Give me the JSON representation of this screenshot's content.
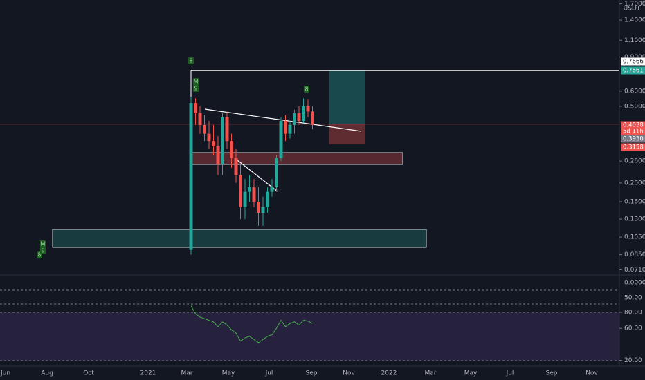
{
  "chart_data": {
    "type": "candlestick",
    "unit": "USDT",
    "log_scale": true,
    "ylim": [
      0.0656,
      1.78
    ],
    "yticks": [
      {
        "value": 1.7,
        "label": "1.7000"
      },
      {
        "value": 1.4,
        "label": "1.4000"
      },
      {
        "value": 1.1,
        "label": "1.1000"
      },
      {
        "value": 0.9,
        "label": "0.9000"
      },
      {
        "value": 0.6,
        "label": "0.6000"
      },
      {
        "value": 0.5,
        "label": "0.5000"
      },
      {
        "value": 0.26,
        "label": "0.2600"
      },
      {
        "value": 0.2,
        "label": "0.2000"
      },
      {
        "value": 0.16,
        "label": "0.1600"
      },
      {
        "value": 0.13,
        "label": "0.1300"
      },
      {
        "value": 0.105,
        "label": "0.1050"
      },
      {
        "value": 0.085,
        "label": "0.0850"
      },
      {
        "value": 0.071,
        "label": "0.0710"
      }
    ],
    "open": [
      0.09,
      0.52,
      0.46,
      0.4,
      0.36,
      0.33,
      0.31,
      0.25,
      0.44,
      0.33,
      0.27,
      0.22,
      0.15,
      0.18,
      0.19,
      0.16,
      0.14,
      0.15,
      0.18,
      0.19,
      0.27,
      0.42,
      0.36,
      0.4,
      0.46,
      0.42,
      0.5,
      0.47
    ],
    "high": [
      0.56,
      0.55,
      0.5,
      0.45,
      0.42,
      0.4,
      0.35,
      0.46,
      0.47,
      0.36,
      0.3,
      0.25,
      0.21,
      0.22,
      0.21,
      0.19,
      0.17,
      0.19,
      0.21,
      0.28,
      0.44,
      0.45,
      0.42,
      0.48,
      0.5,
      0.55,
      0.54,
      0.5
    ],
    "low": [
      0.085,
      0.4,
      0.36,
      0.33,
      0.3,
      0.28,
      0.22,
      0.22,
      0.3,
      0.24,
      0.2,
      0.13,
      0.13,
      0.16,
      0.15,
      0.12,
      0.12,
      0.14,
      0.17,
      0.18,
      0.26,
      0.33,
      0.34,
      0.36,
      0.4,
      0.41,
      0.44,
      0.38
    ],
    "close": [
      0.52,
      0.46,
      0.4,
      0.36,
      0.33,
      0.31,
      0.25,
      0.44,
      0.33,
      0.27,
      0.22,
      0.15,
      0.18,
      0.19,
      0.16,
      0.14,
      0.15,
      0.18,
      0.19,
      0.27,
      0.42,
      0.36,
      0.4,
      0.46,
      0.42,
      0.5,
      0.47,
      0.4
    ],
    "colors": {
      "up": "#26a69a",
      "down": "#ef5350"
    },
    "price_tags": [
      {
        "text": "0.7666",
        "color": "#ffffff"
      },
      {
        "text": "0.7661",
        "color": "#26a69a"
      },
      {
        "text": "0.4038",
        "color": "#ef5350"
      },
      {
        "text": "5d 11h",
        "color": "#ef5350"
      },
      {
        "text": "0.3930",
        "color": "#787b86"
      },
      {
        "text": "0.3158",
        "color": "#ef5350"
      }
    ],
    "markers": [
      "8",
      "M",
      "9",
      "8",
      "M",
      "9",
      "8"
    ],
    "pane_labels": [
      "0.0000",
      "50.00"
    ],
    "rsi": {
      "ylim": [
        17,
        86
      ],
      "yticks": [
        {
          "value": 80,
          "label": "80.00"
        },
        {
          "value": 60,
          "label": "60.00"
        },
        {
          "value": 20,
          "label": "20.00"
        }
      ],
      "values": [
        88,
        78,
        74,
        72,
        70,
        68,
        62,
        68,
        64,
        58,
        54,
        44,
        48,
        50,
        46,
        42,
        46,
        50,
        52,
        60,
        70,
        62,
        66,
        68,
        64,
        70,
        69,
        66
      ],
      "color": "#4caf50"
    },
    "time_labels": [
      "Jun",
      "Aug",
      "Oct",
      "2021",
      "Mar",
      "May",
      "Jul",
      "Sep",
      "Nov",
      "2022",
      "Mar",
      "May",
      "Jul",
      "Sep",
      "Nov"
    ]
  }
}
